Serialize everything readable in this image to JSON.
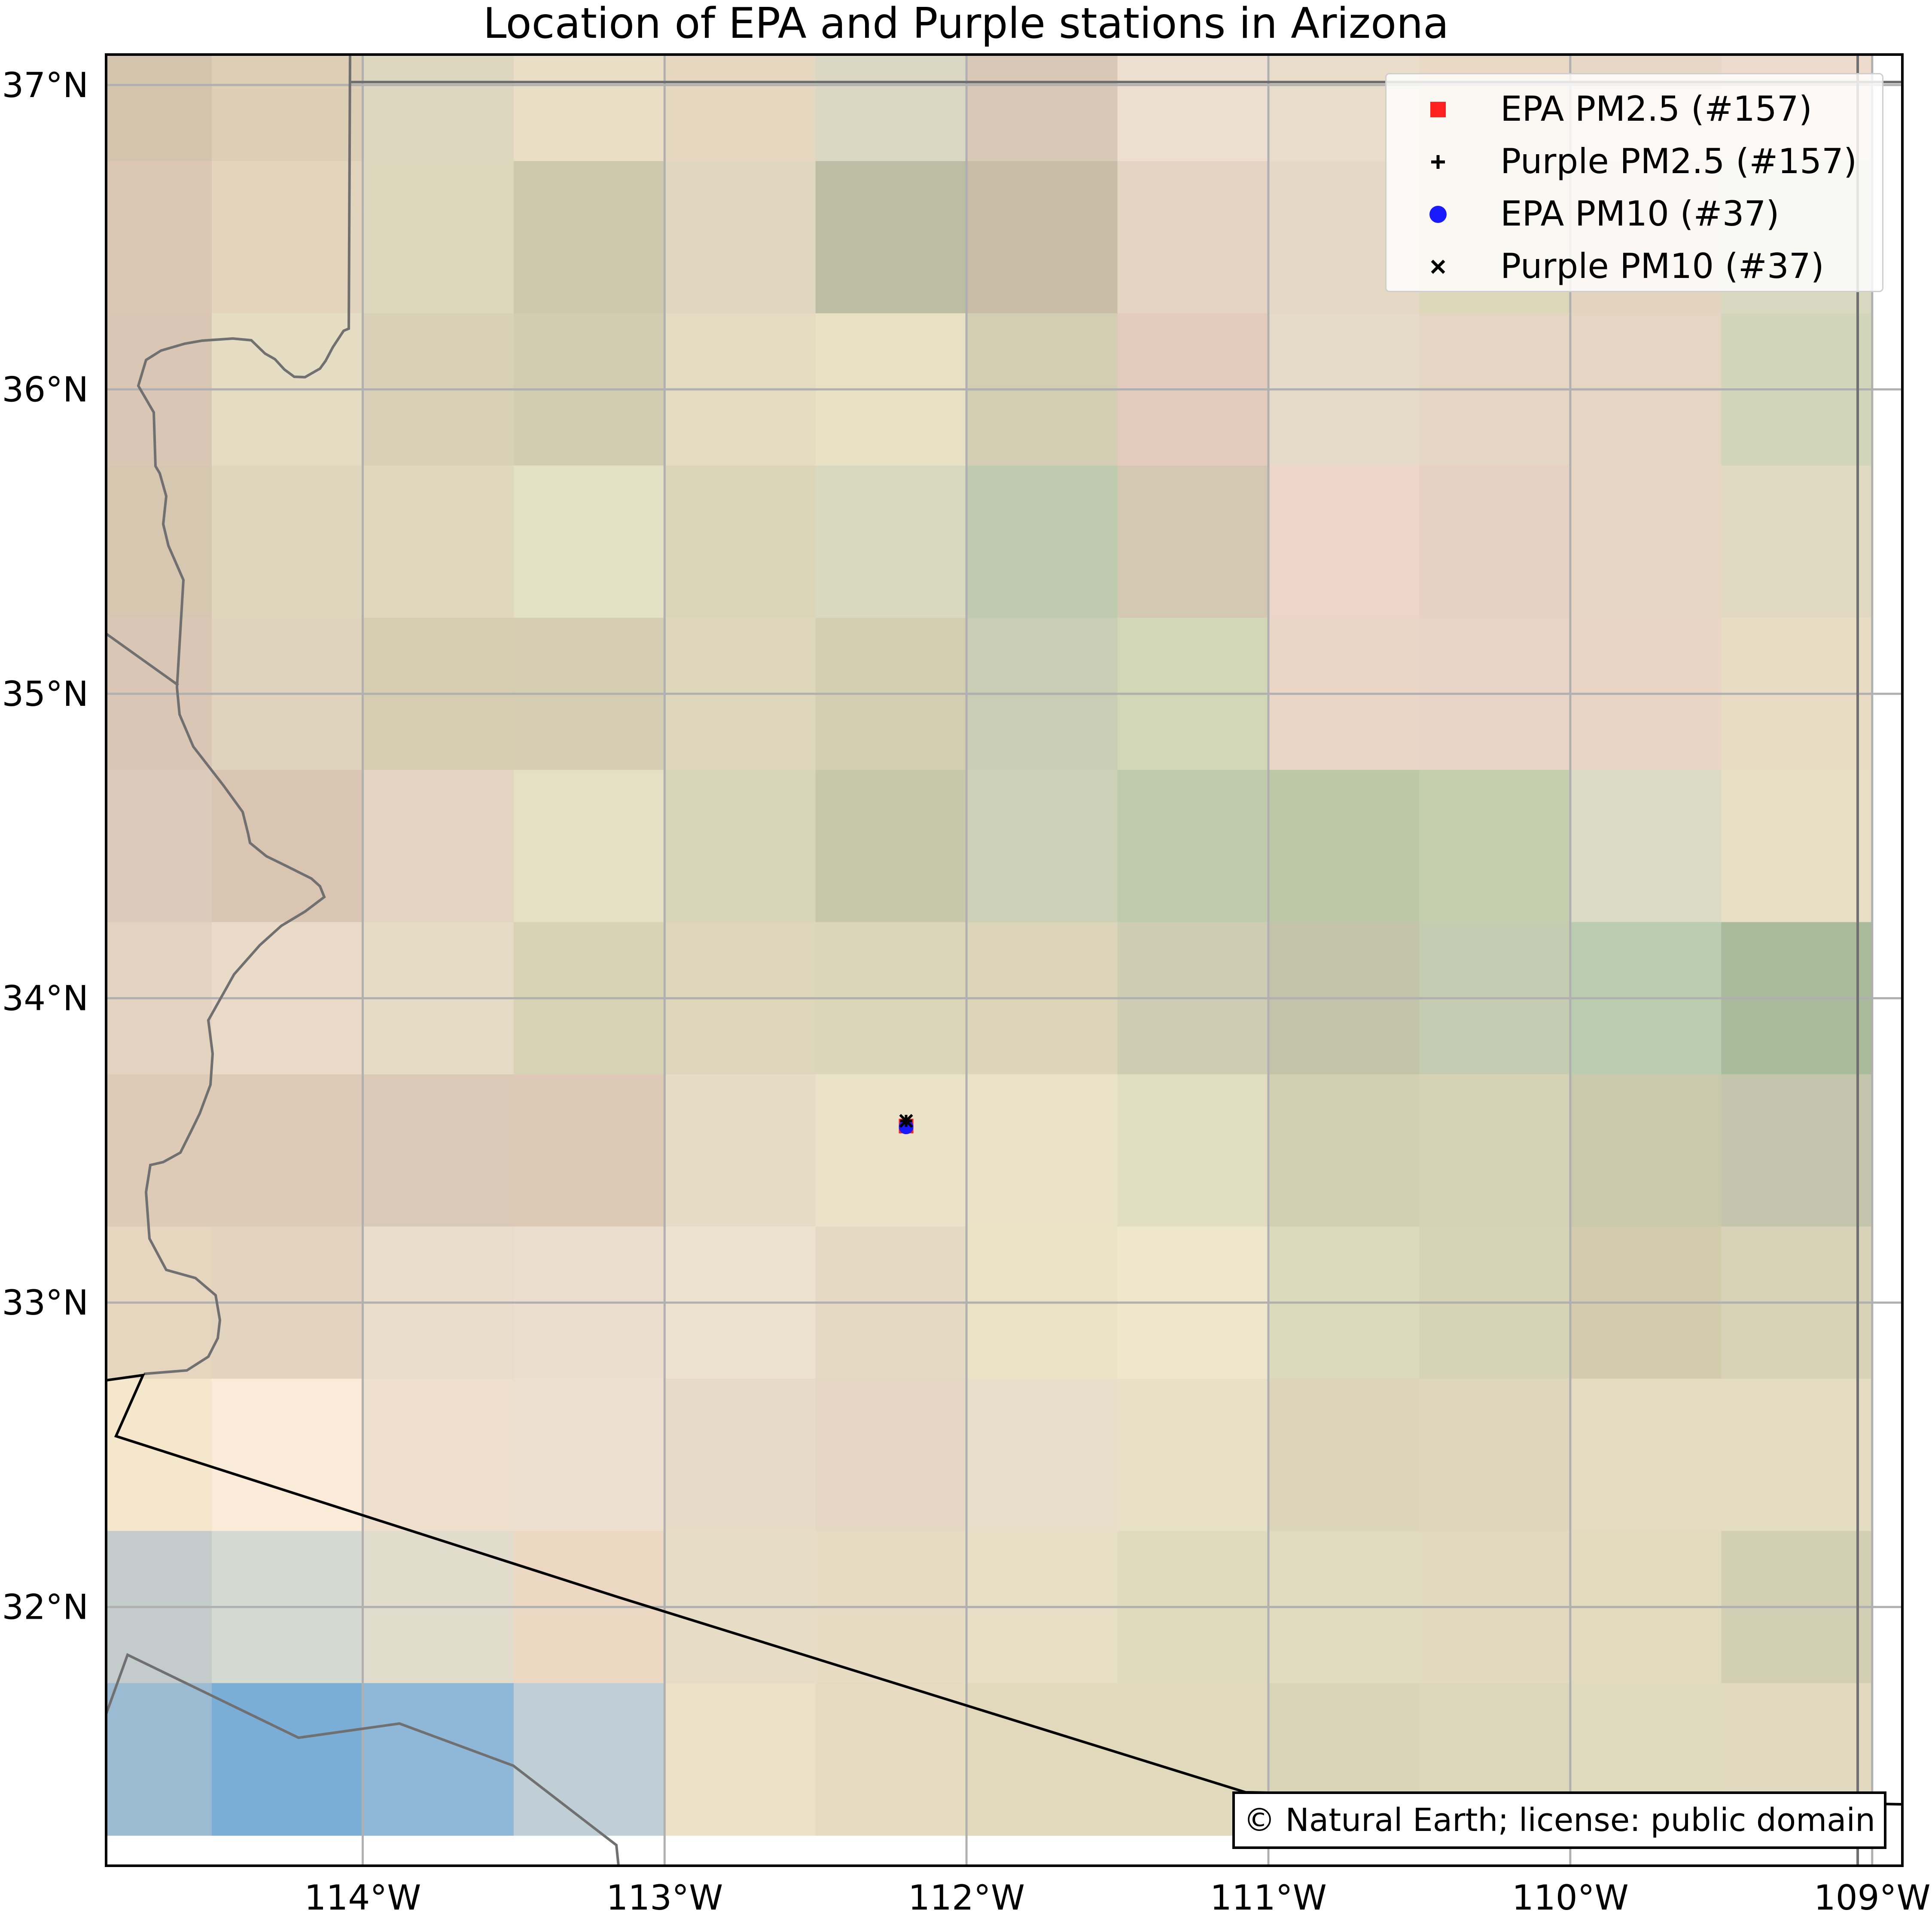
{
  "title": "Location of EPA and Purple stations in Arizona",
  "map": {
    "extent": {
      "lon_min": -114.85,
      "lon_max": -108.9,
      "lat_min": 31.15,
      "lat_max": 37.1
    },
    "lon_ticks": [
      {
        "value": -114,
        "label": "114°W"
      },
      {
        "value": -113,
        "label": "113°W"
      },
      {
        "value": -112,
        "label": "112°W"
      },
      {
        "value": -111,
        "label": "111°W"
      },
      {
        "value": -110,
        "label": "110°W"
      },
      {
        "value": -109,
        "label": "109°W"
      }
    ],
    "lat_ticks": [
      {
        "value": 37,
        "label": "37°N"
      },
      {
        "value": 36,
        "label": "36°N"
      },
      {
        "value": 35,
        "label": "35°N"
      },
      {
        "value": 34,
        "label": "34°N"
      },
      {
        "value": 33,
        "label": "33°N"
      },
      {
        "value": 32,
        "label": "32°N"
      }
    ],
    "stations": {
      "lon": -112.2,
      "lat": 33.58
    }
  },
  "legend": [
    {
      "marker": "square",
      "color": "#ff2020",
      "label": "EPA PM2.5 (#157)"
    },
    {
      "marker": "plus",
      "color": "#000000",
      "label": "Purple PM2.5 (#157)"
    },
    {
      "marker": "circle",
      "color": "#1a1aff",
      "label": "EPA PM10 (#37)"
    },
    {
      "marker": "cross",
      "color": "#000000",
      "label": "Purple PM10 (#37)"
    }
  ],
  "attribution": "© Natural Earth; license: public domain",
  "colors": {
    "grid": "#b0b0b0",
    "state_border": "#707070",
    "national_border": "#000000",
    "water": "#7aaed6"
  }
}
